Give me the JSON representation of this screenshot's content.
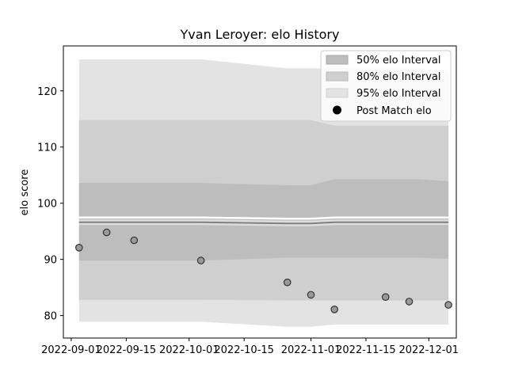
{
  "chart_data": {
    "type": "area",
    "title": "Yvan Leroyer: elo History",
    "xlabel": "",
    "ylabel": "elo score",
    "xlim": [
      "2022-08-30",
      "2022-12-08"
    ],
    "ylim": [
      76,
      128
    ],
    "grid": false,
    "legend_position": "top-right",
    "x_tick_labels": [
      "2022-09-01",
      "2022-09-15",
      "2022-10-01",
      "2022-10-15",
      "2022-11-01",
      "2022-11-15",
      "2022-12-01"
    ],
    "y_tick_labels": [
      "80",
      "90",
      "100",
      "110",
      "120"
    ],
    "x_ticks": [
      "2022-09-01",
      "2022-09-15",
      "2022-10-01",
      "2022-10-15",
      "2022-11-01",
      "2022-11-15",
      "2022-12-01"
    ],
    "y_ticks": [
      80,
      90,
      100,
      110,
      120
    ],
    "legend": [
      "50% elo Interval",
      "80% elo Interval",
      "95% elo Interval",
      "Post Match elo"
    ],
    "colors": {
      "band95": "#e3e3e3",
      "band80": "#cfcfcf",
      "band50": "#bdbdbd",
      "mean": "#808080",
      "point_fill": "#999999",
      "point_edge": "#333333"
    },
    "intervals": {
      "x": [
        "2022-09-03",
        "2022-10-04",
        "2022-10-26",
        "2022-11-01",
        "2022-11-07",
        "2022-11-28",
        "2022-12-06"
      ],
      "mean": [
        96.6,
        96.6,
        96.4,
        96.4,
        96.6,
        96.6,
        96.6
      ],
      "band50_low": [
        89.8,
        89.8,
        90.3,
        90.3,
        90.3,
        90.3,
        90.1
      ],
      "band50_high": [
        103.6,
        103.6,
        103.2,
        103.2,
        104.3,
        104.3,
        103.9
      ],
      "band80_low": [
        82.8,
        82.8,
        82.7,
        82.7,
        82.7,
        82.7,
        82.7
      ],
      "band80_high": [
        114.8,
        114.8,
        114.8,
        114.8,
        113.8,
        113.8,
        113.8
      ],
      "band95_low": [
        78.9,
        78.9,
        78.0,
        78.0,
        78.4,
        78.4,
        78.4
      ],
      "band95_high": [
        125.6,
        125.6,
        124.0,
        124.0,
        124.0,
        124.0,
        123.3
      ]
    },
    "series": [
      {
        "name": "Post Match elo",
        "x": [
          "2022-09-03",
          "2022-09-10",
          "2022-09-17",
          "2022-10-04",
          "2022-10-26",
          "2022-11-01",
          "2022-11-07",
          "2022-11-20",
          "2022-11-26",
          "2022-12-06"
        ],
        "values": [
          92.1,
          94.8,
          93.4,
          89.8,
          85.9,
          83.7,
          81.1,
          83.3,
          82.5,
          81.9
        ]
      }
    ]
  }
}
